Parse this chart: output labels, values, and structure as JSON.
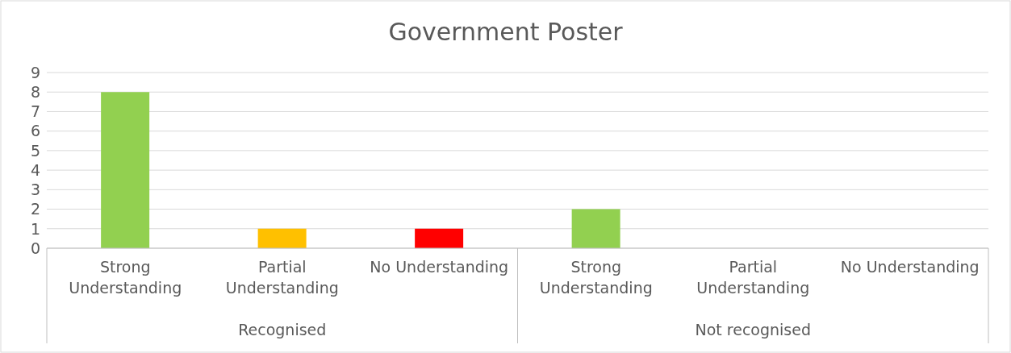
{
  "chart_data": {
    "type": "bar",
    "title": "Government Poster",
    "categories": [
      "Strong Understanding",
      "Partial Understanding",
      "No Understanding",
      "Strong Understanding",
      "Partial Understanding",
      "No Understanding"
    ],
    "values": [
      8,
      1,
      1,
      2,
      0,
      0
    ],
    "colors": [
      "#92d050",
      "#ffc000",
      "#ff0000",
      "#92d050",
      "#ffc000",
      "#ff0000"
    ],
    "ylim": [
      0,
      9
    ],
    "yticks": [
      0,
      1,
      2,
      3,
      4,
      5,
      6,
      7,
      8,
      9
    ],
    "grid": "y",
    "annotations": [
      "Recognised",
      "Not recognised"
    ]
  }
}
